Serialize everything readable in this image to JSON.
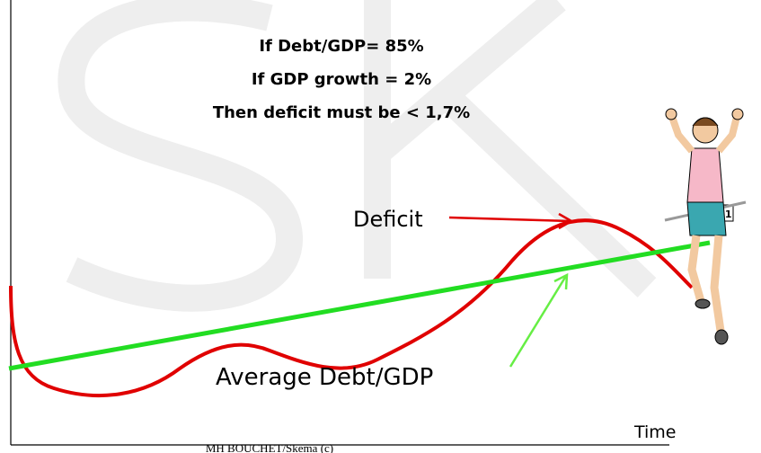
{
  "annotations": [
    "If Debt/GDP= 85%",
    "If GDP growth = 2%",
    "Then deficit must be < 1,7%"
  ],
  "labels": {
    "deficit": "Deficit",
    "average": "Average Debt/GDP",
    "x_axis": "Time"
  },
  "runner_bib": "111",
  "footer": "MH BOUCHET/Skema (c)"
}
